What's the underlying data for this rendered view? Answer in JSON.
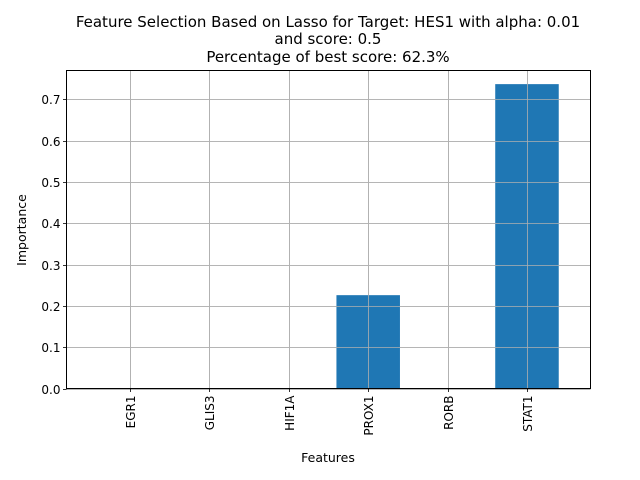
{
  "chart_data": {
    "type": "bar",
    "title_lines": [
      "Feature Selection Based on Lasso for Target: HES1 with alpha: 0.01",
      "and score: 0.5",
      "Percentage of best score: 62.3%"
    ],
    "xlabel": "Features",
    "ylabel": "Importance",
    "categories": [
      "EGR1",
      "GLIS3",
      "HIF1A",
      "PROX1",
      "RORB",
      "STAT1"
    ],
    "values": [
      0.0,
      0.0,
      0.0,
      0.226,
      0.0,
      0.737
    ],
    "ylim": [
      0,
      0.77
    ],
    "yticks": [
      0.0,
      0.1,
      0.2,
      0.3,
      0.4,
      0.5,
      0.6,
      0.7
    ],
    "ytick_labels": [
      "0.0",
      "0.1",
      "0.2",
      "0.3",
      "0.4",
      "0.5",
      "0.6",
      "0.7"
    ],
    "grid": true,
    "bar_color": "#1f77b4",
    "grid_color": "#b0b0b0"
  }
}
